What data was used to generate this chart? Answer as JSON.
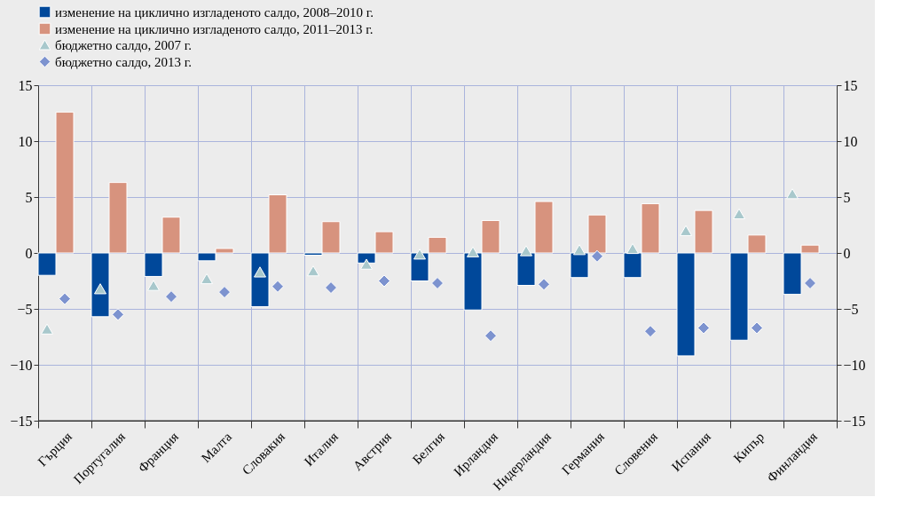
{
  "chart_data": {
    "type": "bar",
    "categories": [
      "Гърция",
      "Португалия",
      "Франция",
      "Малта",
      "Словакия",
      "Италия",
      "Австрия",
      "Белгия",
      "Ирландия",
      "Нидерландия",
      "Германия",
      "Словения",
      "Испания",
      "Кипър",
      "Финландия"
    ],
    "series": [
      {
        "name": "изменение на циклично изгладеното салдо, 2008–2010 г.",
        "color": "#00489a",
        "values": [
          -2.0,
          -5.7,
          -2.1,
          -0.7,
          -4.8,
          -0.2,
          -0.9,
          -2.5,
          -5.1,
          -2.9,
          -2.2,
          -2.2,
          -9.2,
          -7.8,
          -3.7
        ]
      },
      {
        "name": "изменение на циклично изгладеното салдо, 2011–2013 г.",
        "color": "#d7937e",
        "values": [
          12.6,
          6.3,
          3.2,
          0.4,
          5.2,
          2.8,
          1.9,
          1.4,
          2.9,
          4.6,
          3.4,
          4.4,
          3.8,
          1.6,
          0.7
        ]
      },
      {
        "name": "бюджетно салдо, 2007 г.",
        "type": "scatter",
        "marker": "triangle",
        "color": "#a8c8cc",
        "values": [
          -6.8,
          -3.2,
          -2.9,
          -2.3,
          -1.7,
          -1.6,
          -1.0,
          -0.1,
          0.1,
          0.2,
          0.3,
          0.4,
          2.0,
          3.5,
          5.3
        ]
      },
      {
        "name": "бюджетно салдо, 2013 г.",
        "type": "scatter",
        "marker": "diamond",
        "color": "#7d93cf",
        "values": [
          -4.1,
          -5.5,
          -3.9,
          -3.5,
          -3.0,
          -3.1,
          -2.5,
          -2.7,
          -7.4,
          -2.8,
          -0.3,
          -7.0,
          -6.7,
          -6.7,
          -2.7
        ]
      }
    ],
    "ylim": [
      -15,
      15
    ],
    "yticks": [
      -15,
      -10,
      -5,
      0,
      5,
      10,
      15
    ],
    "y2lim": [
      -15,
      15
    ],
    "y2ticks": [
      -15,
      -10,
      -5,
      0,
      5,
      10,
      15
    ],
    "grid": true,
    "legend": "top left"
  }
}
